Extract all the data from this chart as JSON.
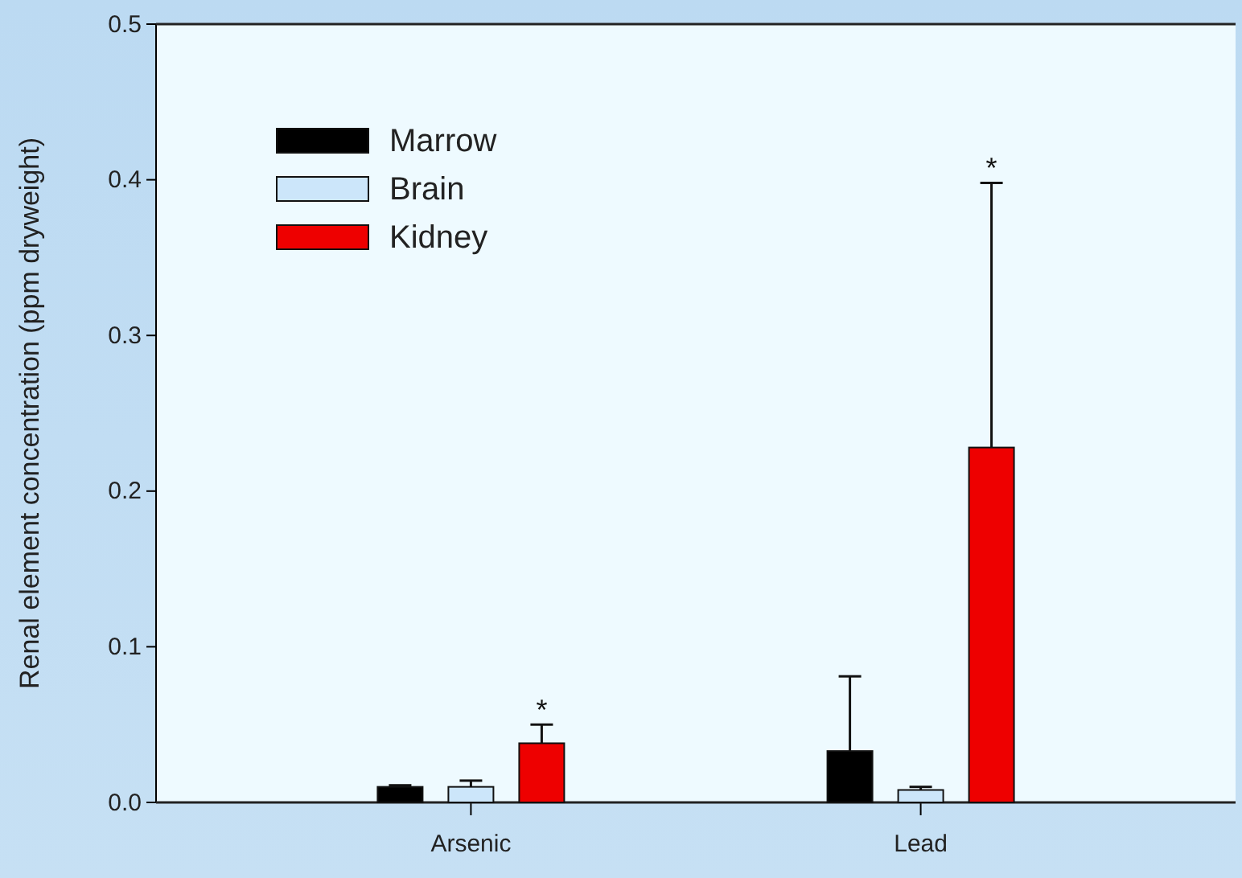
{
  "chart_data": {
    "type": "bar",
    "ylabel": "Renal element concentration (ppm dryweight)",
    "categories": [
      "Arsenic",
      "Lead"
    ],
    "series": [
      {
        "name": "Marrow",
        "color": "#000000",
        "values": [
          0.01,
          0.033
        ],
        "errors": [
          [
            0.01,
            0.011
          ],
          [
            0.033,
            0.081
          ]
        ]
      },
      {
        "name": "Brain",
        "color": "#cce6fa",
        "values": [
          0.01,
          0.008
        ],
        "errors": [
          [
            0.01,
            0.014
          ],
          [
            0.008,
            0.01
          ]
        ]
      },
      {
        "name": "Kidney",
        "color": "#ee0000",
        "values": [
          0.038,
          0.228
        ],
        "errors": [
          [
            0.038,
            0.05
          ],
          [
            0.228,
            0.398
          ]
        ]
      }
    ],
    "ylim": [
      0,
      0.5
    ],
    "yticks": [
      {
        "value": 0,
        "label": "0.0"
      },
      0.1,
      0.2,
      0.3,
      0.4,
      0.5
    ],
    "annotations": [
      "*",
      "*"
    ],
    "legend": "top left",
    "grid": false
  }
}
